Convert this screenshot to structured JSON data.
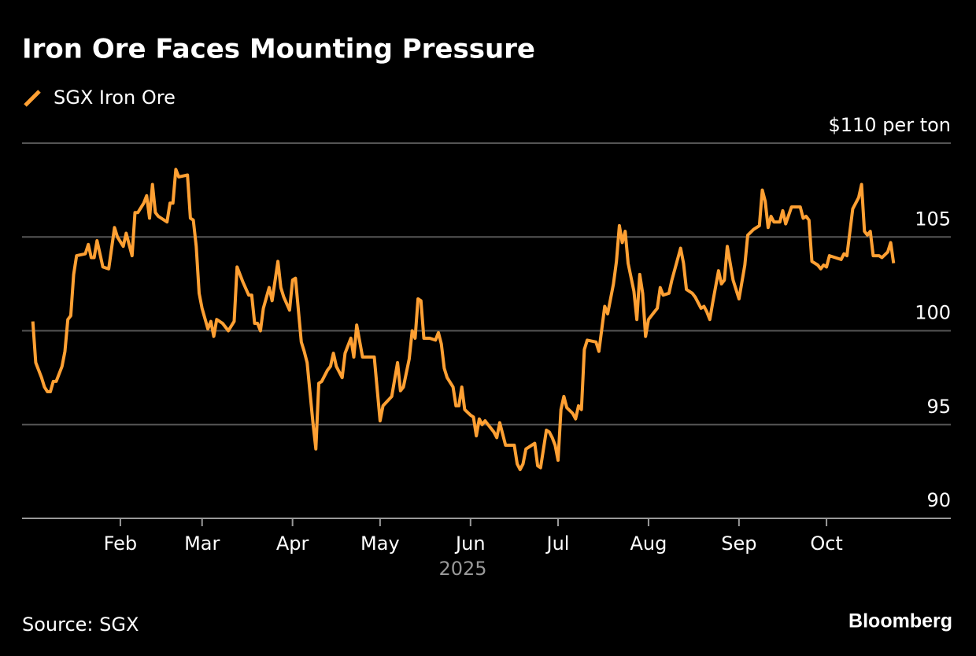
{
  "chart_data": {
    "type": "line",
    "title": "Iron Ore Faces Mounting Pressure",
    "xlabel": "2025",
    "source": "Source: SGX",
    "credit": "Bloomberg",
    "grid": true,
    "legend": "top-left",
    "ylim": [
      90,
      110
    ],
    "yticks": [
      90,
      95,
      100,
      105,
      {
        "value": 110,
        "label": "$110 per ton"
      }
    ],
    "xlim": [
      -2.7,
      315.6
    ],
    "xticks": [
      {
        "value": 31,
        "label": "Feb"
      },
      {
        "value": 59,
        "label": "Mar"
      },
      {
        "value": 90,
        "label": "Apr"
      },
      {
        "value": 120,
        "label": "May"
      },
      {
        "value": 151,
        "label": "Jun"
      },
      {
        "value": 181,
        "label": "Jul"
      },
      {
        "value": 212,
        "label": "Aug"
      },
      {
        "value": 243,
        "label": "Sep"
      },
      {
        "value": 273,
        "label": "Oct"
      }
    ],
    "x": [
      1,
      2,
      4,
      5,
      6,
      7,
      8,
      9,
      11,
      12,
      13,
      14,
      15,
      16,
      19,
      20,
      21,
      22,
      23,
      24,
      25,
      27,
      29,
      30,
      32,
      33,
      35,
      36,
      37,
      39,
      40,
      41,
      42,
      43,
      44,
      47,
      48,
      49,
      50,
      51,
      54,
      55,
      56,
      57,
      58,
      59,
      61,
      62,
      63,
      64,
      66,
      68,
      70,
      71,
      73,
      75,
      76,
      77,
      78,
      79,
      80,
      82,
      83,
      85,
      86,
      87,
      89,
      90,
      91,
      93,
      94,
      95,
      97,
      98,
      99,
      100,
      102,
      103,
      104,
      105,
      107,
      108,
      110,
      111,
      112,
      114,
      117,
      118,
      120,
      121,
      124,
      126,
      127,
      128,
      130,
      131,
      132,
      133,
      134,
      135,
      137,
      139,
      140,
      141,
      142,
      143,
      145,
      146,
      147,
      148,
      149,
      151,
      152,
      153,
      154,
      155,
      156,
      157,
      159,
      160,
      161,
      163,
      166,
      167,
      168,
      169,
      170,
      173,
      174,
      175,
      177,
      178,
      179,
      180,
      181,
      182,
      183,
      184,
      186,
      187,
      188,
      189,
      190,
      191,
      194,
      195,
      197,
      198,
      200,
      201,
      202,
      203,
      204,
      205,
      207,
      208,
      209,
      210,
      211,
      212,
      214,
      215,
      216,
      217,
      219,
      220,
      223,
      224,
      225,
      227,
      228,
      230,
      231,
      232,
      233,
      234,
      236,
      237,
      238,
      239,
      241,
      243,
      245,
      246,
      248,
      250,
      251,
      252,
      253,
      254,
      255,
      257,
      258,
      259,
      261,
      264,
      265,
      266,
      267,
      268,
      270,
      271,
      272,
      273,
      274,
      276,
      278,
      279,
      280,
      282,
      284,
      285,
      286,
      287,
      288,
      289,
      291,
      292,
      294,
      295,
      296
    ],
    "series": [
      {
        "name": "SGX Iron Ore",
        "color": "#ffa033",
        "values": [
          100.5,
          98.3,
          97.5,
          97.0,
          96.75,
          96.75,
          97.3,
          97.3,
          98.1,
          98.9,
          100.6,
          100.8,
          103.0,
          104.0,
          104.1,
          104.6,
          103.9,
          103.9,
          104.8,
          104.1,
          103.4,
          103.3,
          105.5,
          105.0,
          104.5,
          105.2,
          104.0,
          106.3,
          106.3,
          106.8,
          107.2,
          106.0,
          107.8,
          106.3,
          106.1,
          105.8,
          106.8,
          106.8,
          108.6,
          108.2,
          108.3,
          106.0,
          105.9,
          104.5,
          102.0,
          101.2,
          100.1,
          100.5,
          99.7,
          100.6,
          100.4,
          100.0,
          100.5,
          103.4,
          102.6,
          101.9,
          101.9,
          100.4,
          100.4,
          100.0,
          101.2,
          102.3,
          101.6,
          103.7,
          102.3,
          101.8,
          101.1,
          102.7,
          102.8,
          99.4,
          98.9,
          98.3,
          95.1,
          93.7,
          97.2,
          97.3,
          97.9,
          98.1,
          98.8,
          98.1,
          97.5,
          98.8,
          99.6,
          98.6,
          100.3,
          98.6,
          98.6,
          98.6,
          95.2,
          96.0,
          96.5,
          98.3,
          96.8,
          97.0,
          98.5,
          100.0,
          99.6,
          101.7,
          101.6,
          99.6,
          99.6,
          99.5,
          99.9,
          99.3,
          98.0,
          97.5,
          97.0,
          96.0,
          96.0,
          97.0,
          95.8,
          95.5,
          95.4,
          94.4,
          95.3,
          95.0,
          95.2,
          95.0,
          94.6,
          94.3,
          95.1,
          93.9,
          93.9,
          92.9,
          92.6,
          92.9,
          93.7,
          94.0,
          92.8,
          92.7,
          94.7,
          94.6,
          94.3,
          93.9,
          93.1,
          95.8,
          96.5,
          95.9,
          95.6,
          95.3,
          96.0,
          95.8,
          99.0,
          99.5,
          99.4,
          98.9,
          101.3,
          100.9,
          102.5,
          103.7,
          105.6,
          104.7,
          105.3,
          103.6,
          102.1,
          100.6,
          103.0,
          102.0,
          99.7,
          100.6,
          101.0,
          101.2,
          102.3,
          101.9,
          102.0,
          102.7,
          104.4,
          103.6,
          102.2,
          102.0,
          101.8,
          101.2,
          101.3,
          101.0,
          100.6,
          101.5,
          103.2,
          102.5,
          102.7,
          104.5,
          102.7,
          101.7,
          103.5,
          105.1,
          105.4,
          105.6,
          107.5,
          106.9,
          105.5,
          106.1,
          105.8,
          105.8,
          106.4,
          105.7,
          106.6,
          106.6,
          106.0,
          106.1,
          105.9,
          103.7,
          103.5,
          103.3,
          103.5,
          103.4,
          104.0,
          103.9,
          103.8,
          104.1,
          104.0,
          106.5,
          107.1,
          107.8,
          105.3,
          105.1,
          105.3,
          104.0,
          104.0,
          103.9,
          104.2,
          104.7,
          103.6
        ]
      }
    ]
  }
}
